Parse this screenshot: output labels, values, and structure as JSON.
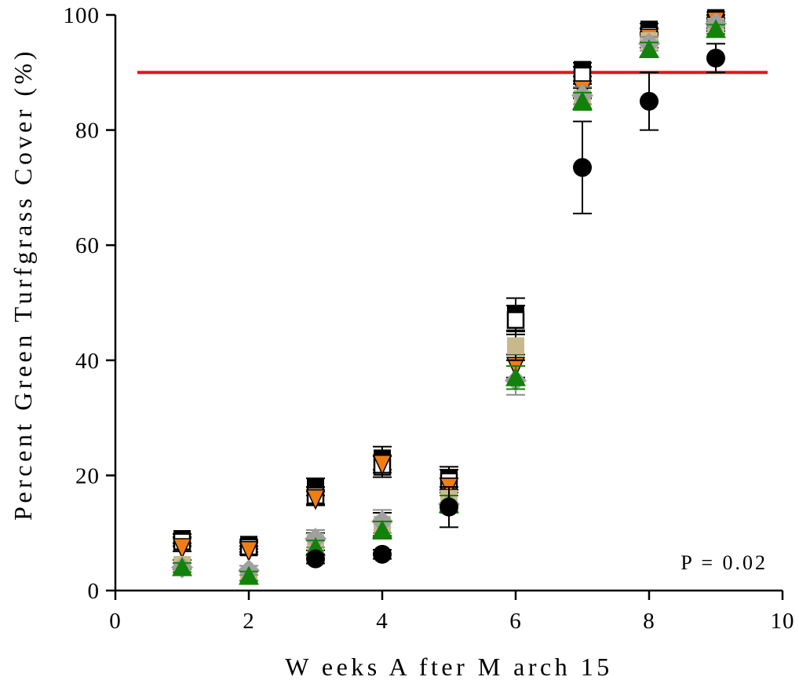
{
  "chart_data": {
    "type": "scatter",
    "title": "",
    "xlabel": "W eeks A fter M arch 15",
    "ylabel": "Percent Green Turfgrass Cover (%)",
    "xlim": [
      0,
      10
    ],
    "ylim": [
      0,
      100
    ],
    "x_ticks": [
      "0",
      "2",
      "4",
      "6",
      "8",
      "10"
    ],
    "y_ticks": [
      "0",
      "20",
      "40",
      "60",
      "80",
      "100"
    ],
    "grid": false,
    "legend": "none",
    "annotation": "P = 0.02",
    "reference_line": {
      "y": 90,
      "color": "#e8141c"
    },
    "series": [
      {
        "marker": "filled-square",
        "color": "#000000",
        "points": [
          [
            1,
            9.0,
            0.8
          ],
          [
            2,
            8.0,
            0.8
          ],
          [
            3,
            18.0,
            1.5
          ],
          [
            4,
            23.0,
            2.0
          ],
          [
            5,
            19.5,
            2.0
          ],
          [
            6,
            48.0,
            2.8
          ],
          [
            7,
            90.5,
            1.2
          ],
          [
            8,
            97.5,
            1.0
          ],
          [
            9,
            99.5,
            0.5
          ]
        ]
      },
      {
        "marker": "open-square",
        "color": "#000000",
        "points": [
          [
            1,
            8.5,
            0.8
          ],
          [
            2,
            7.5,
            0.8
          ],
          [
            3,
            16.5,
            1.5
          ],
          [
            4,
            21.5,
            1.8
          ],
          [
            5,
            19.0,
            2.0
          ],
          [
            6,
            47.0,
            2.5
          ],
          [
            7,
            89.5,
            1.5
          ],
          [
            8,
            96.5,
            1.2
          ],
          [
            9,
            98.5,
            0.8
          ]
        ]
      },
      {
        "marker": "down-triangle",
        "color": "#f07d14",
        "points": [
          [
            1,
            7.5,
            0.7
          ],
          [
            2,
            7.0,
            0.7
          ],
          [
            3,
            16.0,
            1.2
          ],
          [
            4,
            22.0,
            1.5
          ],
          [
            5,
            18.0,
            1.5
          ],
          [
            6,
            39.0,
            2.0
          ],
          [
            7,
            87.0,
            1.5
          ],
          [
            8,
            96.0,
            1.0
          ],
          [
            9,
            99.0,
            0.5
          ]
        ]
      },
      {
        "marker": "tan-square",
        "color": "#c8b98c",
        "points": [
          [
            1,
            4.5,
            0.8
          ],
          [
            2,
            2.5,
            0.8
          ],
          [
            3,
            8.5,
            1.5
          ],
          [
            4,
            11.5,
            2.0
          ],
          [
            5,
            16.0,
            1.5
          ],
          [
            6,
            42.5,
            2.5
          ],
          [
            7,
            85.5,
            1.8
          ],
          [
            8,
            95.5,
            1.2
          ],
          [
            9,
            98.0,
            0.8
          ]
        ]
      },
      {
        "marker": "diamond",
        "color": "#a0a0a0",
        "points": [
          [
            1,
            4.0,
            0.8
          ],
          [
            2,
            3.5,
            0.8
          ],
          [
            3,
            9.0,
            1.5
          ],
          [
            4,
            12.0,
            2.0
          ],
          [
            5,
            15.0,
            1.5
          ],
          [
            6,
            36.5,
            2.5
          ],
          [
            7,
            86.0,
            1.5
          ],
          [
            8,
            95.0,
            1.2
          ],
          [
            9,
            98.5,
            0.6
          ]
        ]
      },
      {
        "marker": "triangle",
        "color": "#13820a",
        "points": [
          [
            1,
            4.0,
            0.8
          ],
          [
            2,
            2.5,
            0.8
          ],
          [
            3,
            7.5,
            1.2
          ],
          [
            4,
            10.5,
            1.5
          ],
          [
            5,
            15.0,
            1.5
          ],
          [
            6,
            37.0,
            2.0
          ],
          [
            7,
            85.0,
            1.5
          ],
          [
            8,
            94.0,
            1.2
          ],
          [
            9,
            97.5,
            0.8
          ]
        ]
      },
      {
        "marker": "circle",
        "color": "#000000",
        "points": [
          [
            1,
            null,
            null
          ],
          [
            2,
            null,
            null
          ],
          [
            3,
            5.5,
            0.8
          ],
          [
            4,
            6.3,
            0.8
          ],
          [
            5,
            14.5,
            3.5
          ],
          [
            6,
            null,
            null
          ],
          [
            7,
            73.5,
            8.0
          ],
          [
            8,
            85.0,
            5.0
          ],
          [
            9,
            92.5,
            2.5
          ]
        ]
      }
    ]
  }
}
